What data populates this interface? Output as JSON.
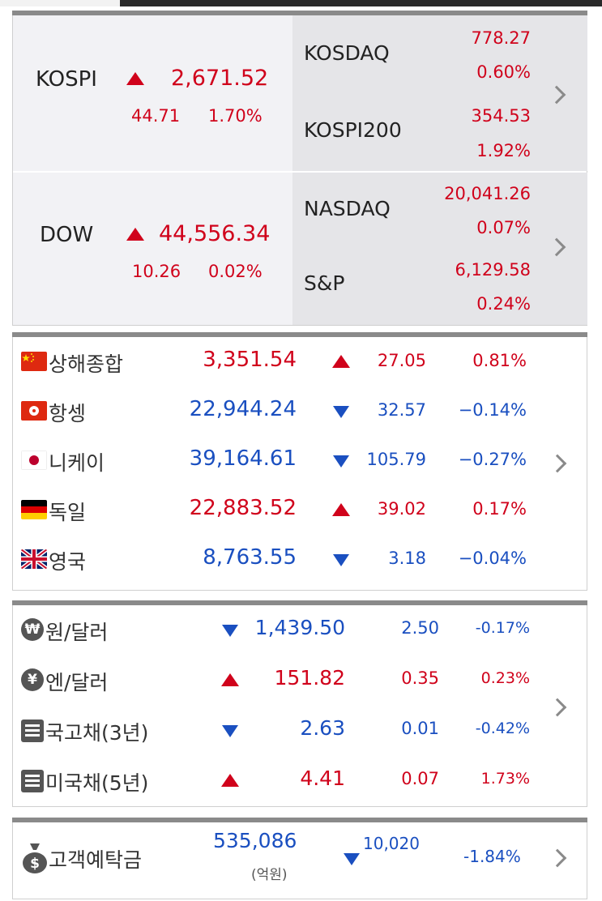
{
  "domestic": {
    "kospi": {
      "name": "KOSPI",
      "value": "2,671.52",
      "change": "44.71",
      "pct": "1.70%"
    },
    "kosdaq": {
      "name": "KOSDAQ",
      "value": "778.27",
      "pct": "0.60%"
    },
    "kospi200": {
      "name": "KOSPI200",
      "value": "354.53",
      "pct": "1.92%"
    },
    "dow": {
      "name": "DOW",
      "value": "44,556.34",
      "change": "10.26",
      "pct": "0.02%"
    },
    "nasdaq": {
      "name": "NASDAQ",
      "value": "20,041.26",
      "pct": "0.07%"
    },
    "sp": {
      "name": "S&P",
      "value": "6,129.58",
      "pct": "0.24%"
    }
  },
  "global": [
    {
      "name": "상해종합",
      "value": "3,351.54",
      "change": "27.05",
      "pct": "0.81%",
      "dir": "up",
      "flag": "china-flag-icon"
    },
    {
      "name": "항셍",
      "value": "22,944.24",
      "change": "32.57",
      "pct": "−0.14%",
      "dir": "down",
      "flag": "hongkong-flag-icon"
    },
    {
      "name": "니케이",
      "value": "39,164.61",
      "change": "105.79",
      "pct": "−0.27%",
      "dir": "down",
      "flag": "japan-flag-icon"
    },
    {
      "name": "독일",
      "value": "22,883.52",
      "change": "39.02",
      "pct": "0.17%",
      "dir": "up",
      "flag": "germany-flag-icon"
    },
    {
      "name": "영국",
      "value": "8,763.55",
      "change": "3.18",
      "pct": "−0.04%",
      "dir": "down",
      "flag": "uk-flag-icon"
    }
  ],
  "fx": [
    {
      "name": "원/달러",
      "value": "1,439.50",
      "change": "2.50",
      "pct": "-0.17%",
      "dir": "down",
      "icon": "won-icon",
      "glyph": "₩"
    },
    {
      "name": "엔/달러",
      "value": "151.82",
      "change": "0.35",
      "pct": "0.23%",
      "dir": "up",
      "icon": "yen-icon",
      "glyph": "¥"
    },
    {
      "name": "국고채(3년)",
      "value": "2.63",
      "change": "0.01",
      "pct": "-0.42%",
      "dir": "down",
      "icon": "document-icon",
      "glyph": ""
    },
    {
      "name": "미국채(5년)",
      "value": "4.41",
      "change": "0.07",
      "pct": "1.73%",
      "dir": "up",
      "icon": "document-icon",
      "glyph": ""
    }
  ],
  "deposit": {
    "name": "고객예탁금",
    "value": "535,086",
    "unit": "(억원)",
    "change": "10,020",
    "pct": "-1.84%",
    "dir": "down"
  },
  "colors": {
    "up": "#d0021b",
    "down": "#1a4fc0"
  }
}
